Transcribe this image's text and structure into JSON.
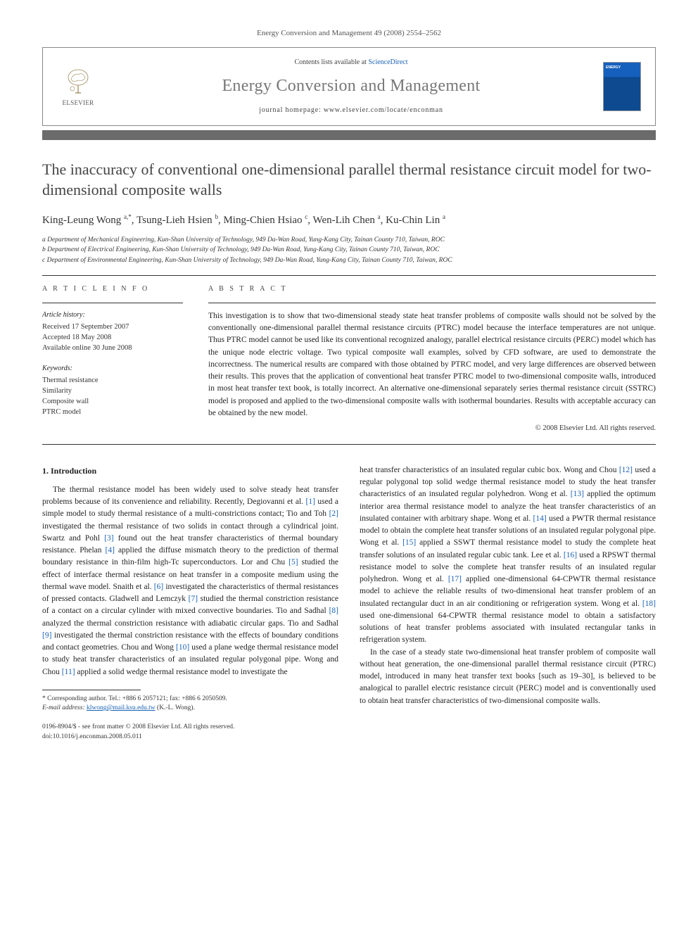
{
  "journal_ref": "Energy Conversion and Management 49 (2008) 2554–2562",
  "header": {
    "contents_prefix": "Contents lists available at ",
    "contents_link": "ScienceDirect",
    "journal_title": "Energy Conversion and Management",
    "homepage_prefix": "journal homepage: ",
    "homepage": "www.elsevier.com/locate/enconman",
    "publisher": "ELSEVIER"
  },
  "article": {
    "title": "The inaccuracy of conventional one-dimensional parallel thermal resistance circuit model for two-dimensional composite walls",
    "authors_html": "King-Leung Wong <sup>a,*</sup>, Tsung-Lieh Hsien <sup>b</sup>, Ming-Chien Hsiao <sup>c</sup>, Wen-Lih Chen <sup>a</sup>, Ku-Chin Lin <sup>a</sup>",
    "affiliations": [
      "a Department of Mechanical Engineering, Kun-Shan University of Technology, 949 Da-Wan Road, Yung-Kang City, Tainan County 710, Taiwan, ROC",
      "b Department of Electrical Engineering, Kun-Shan University of Technology, 949 Da-Wan Road, Yung-Kang City, Tainan County 710, Taiwan, ROC",
      "c Department of Environmental Engineering, Kun-Shan University of Technology, 949 Da-Wan Road, Yung-Kang City, Tainan County 710, Taiwan, ROC"
    ]
  },
  "meta": {
    "info_heading": "A R T I C L E   I N F O",
    "abstract_heading": "A B S T R A C T",
    "history_label": "Article history:",
    "history": [
      "Received 17 September 2007",
      "Accepted 18 May 2008",
      "Available online 30 June 2008"
    ],
    "keywords_label": "Keywords:",
    "keywords": [
      "Thermal resistance",
      "Similarity",
      "Composite wall",
      "PTRC model"
    ]
  },
  "abstract": "This investigation is to show that two-dimensional steady state heat transfer problems of composite walls should not be solved by the conventionally one-dimensional parallel thermal resistance circuits (PTRC) model because the interface temperatures are not unique. Thus PTRC model cannot be used like its conventional recognized analogy, parallel electrical resistance circuits (PERC) model which has the unique node electric voltage. Two typical composite wall examples, solved by CFD software, are used to demonstrate the incorrectness. The numerical results are compared with those obtained by PTRC model, and very large differences are observed between their results. This proves that the application of conventional heat transfer PTRC model to two-dimensional composite walls, introduced in most heat transfer text book, is totally incorrect. An alternative one-dimensional separately series thermal resistance circuit (SSTRC) model is proposed and applied to the two-dimensional composite walls with isothermal boundaries. Results with acceptable accuracy can be obtained by the new model.",
  "copyright": "© 2008 Elsevier Ltd. All rights reserved.",
  "section1": {
    "heading": "1. Introduction",
    "col1": "The thermal resistance model has been widely used to solve steady heat transfer problems because of its convenience and reliability. Recently, Degiovanni et al. [1] used a simple model to study thermal resistance of a multi-constrictions contact; Tio and Toh [2] investigated the thermal resistance of two solids in contact through a cylindrical joint. Swartz and Pohl [3] found out the heat transfer characteristics of thermal boundary resistance. Phelan [4] applied the diffuse mismatch theory to the prediction of thermal boundary resistance in thin-film high-Tc superconductors. Lor and Chu [5] studied the effect of interface thermal resistance on heat transfer in a composite medium using the thermal wave model. Snaith et al. [6] investigated the characteristics of thermal resistances of pressed contacts. Gladwell and Lemczyk [7] studied the thermal constriction resistance of a contact on a circular cylinder with mixed convective boundaries. Tio and Sadhal [8] analyzed the thermal constriction resistance with adiabatic circular gaps. Tio and Sadhal [9] investigated the thermal constriction resistance with the effects of boundary conditions and contact geometries. Chou and Wong [10] used a plane wedge thermal resistance model to study heat transfer characteristics of an insulated regular polygonal pipe. Wong and Chou [11] applied a solid wedge thermal resistance model to investigate the",
    "col2a": "heat transfer characteristics of an insulated regular cubic box. Wong and Chou [12] used a regular polygonal top solid wedge thermal resistance model to study the heat transfer characteristics of an insulated regular polyhedron. Wong et al. [13] applied the optimum interior area thermal resistance model to analyze the heat transfer characteristics of an insulated container with arbitrary shape. Wong et al. [14] used a PWTR thermal resistance model to obtain the complete heat transfer solutions of an insulated regular polygonal pipe. Wong et al. [15] applied a SSWT thermal resistance model to study the complete heat transfer solutions of an insulated regular cubic tank. Lee et al. [16] used a RPSWT thermal resistance model to solve the complete heat transfer results of an insulated regular polyhedron. Wong et al. [17] applied one-dimensional 64-CPWTR thermal resistance model to achieve the reliable results of two-dimensional heat transfer problem of an insulated rectangular duct in an air conditioning or refrigeration system. Wong et al. [18] used one-dimensional 64-CPWTR thermal resistance model to obtain a satisfactory solutions of heat transfer problems associated with insulated rectangular tanks in refrigeration system.",
    "col2b": "In the case of a steady state two-dimensional heat transfer problem of composite wall without heat generation, the one-dimensional parallel thermal resistance circuit (PTRC) model, introduced in many heat transfer text books [such as 19–30], is believed to be analogical to parallel electric resistance circuit (PERC) model and is conventionally used to obtain heat transfer characteristics of two-dimensional composite walls."
  },
  "footnote": {
    "corr": "* Corresponding author. Tel.: +886 6 2057121; fax: +886 6 2050509.",
    "email_label": "E-mail address:",
    "email": "klwong@mail.ksu.edu.tw",
    "email_who": "(K.-L. Wong)."
  },
  "doi": {
    "line1": "0196-8904/$ - see front matter © 2008 Elsevier Ltd. All rights reserved.",
    "line2": "doi:10.1016/j.enconman.2008.05.011"
  },
  "colors": {
    "link": "#1a62b3",
    "bar": "#6b6b6b",
    "title_gray": "#777777"
  }
}
